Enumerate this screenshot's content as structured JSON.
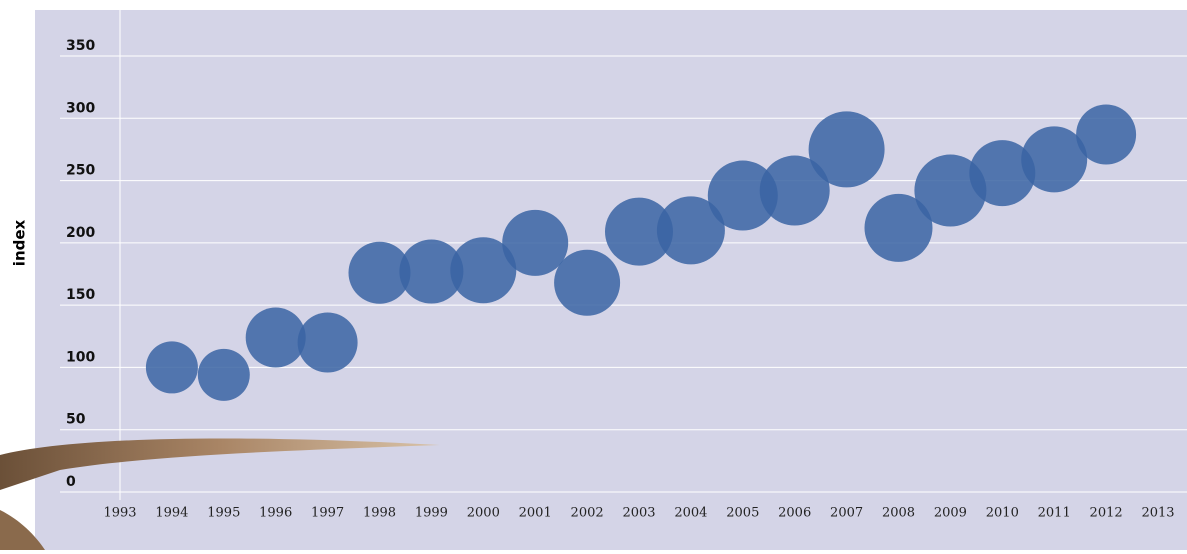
{
  "chart_data": {
    "type": "bubble",
    "y_label": "index",
    "x": [
      1994,
      1995,
      1996,
      1997,
      1998,
      1999,
      2000,
      2001,
      2002,
      2003,
      2004,
      2005,
      2006,
      2007,
      2008,
      2009,
      2010,
      2011,
      2012
    ],
    "values": [
      100,
      94,
      124,
      120,
      176,
      177,
      178,
      200,
      168,
      209,
      210,
      238,
      242,
      275,
      212,
      242,
      256,
      267,
      287
    ],
    "sizes": [
      26,
      26,
      30,
      30,
      31,
      32,
      33,
      33,
      33,
      34,
      34,
      35,
      35,
      38,
      34,
      36,
      33,
      33,
      30
    ],
    "color": "#3a64a3",
    "xlim": [
      1993,
      2013
    ],
    "xticks": [
      1993,
      1994,
      1995,
      1996,
      1997,
      1998,
      1999,
      2000,
      2001,
      2002,
      2003,
      2004,
      2005,
      2006,
      2007,
      2008,
      2009,
      2010,
      2011,
      2012,
      2013
    ],
    "ylim": [
      0,
      350
    ],
    "yticks": [
      0,
      50,
      100,
      150,
      200,
      250,
      300,
      350
    ],
    "grid": true
  }
}
